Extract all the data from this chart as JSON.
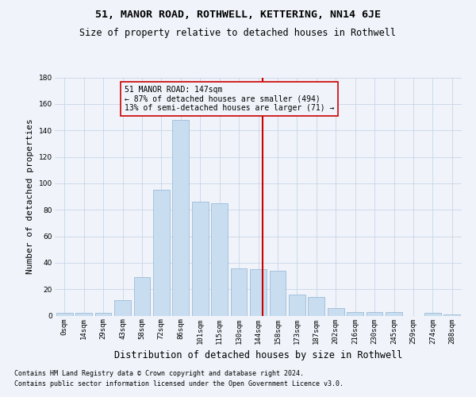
{
  "title1": "51, MANOR ROAD, ROTHWELL, KETTERING, NN14 6JE",
  "title2": "Size of property relative to detached houses in Rothwell",
  "xlabel": "Distribution of detached houses by size in Rothwell",
  "ylabel": "Number of detached properties",
  "bin_labels": [
    "0sqm",
    "14sqm",
    "29sqm",
    "43sqm",
    "58sqm",
    "72sqm",
    "86sqm",
    "101sqm",
    "115sqm",
    "130sqm",
    "144sqm",
    "158sqm",
    "173sqm",
    "187sqm",
    "202sqm",
    "216sqm",
    "230sqm",
    "245sqm",
    "259sqm",
    "274sqm",
    "288sqm"
  ],
  "bar_heights": [
    2,
    2,
    2,
    12,
    29,
    95,
    148,
    86,
    85,
    36,
    35,
    34,
    16,
    14,
    6,
    3,
    3,
    3,
    0,
    2,
    1
  ],
  "bar_color": "#c9ddf0",
  "bar_edge_color": "#9dbbd8",
  "ylim": [
    0,
    180
  ],
  "yticks": [
    0,
    20,
    40,
    60,
    80,
    100,
    120,
    140,
    160,
    180
  ],
  "property_label": "51 MANOR ROAD: 147sqm",
  "annotation_line1": "← 87% of detached houses are smaller (494)",
  "annotation_line2": "13% of semi-detached houses are larger (71) →",
  "vline_color": "#cc0000",
  "footer1": "Contains HM Land Registry data © Crown copyright and database right 2024.",
  "footer2": "Contains public sector information licensed under the Open Government Licence v3.0.",
  "bg_color": "#f0f4fa",
  "grid_color": "#c8d4e8",
  "title1_fontsize": 9.5,
  "title2_fontsize": 8.5,
  "ylabel_fontsize": 8,
  "xlabel_fontsize": 8.5,
  "tick_fontsize": 6.5,
  "footer_fontsize": 6,
  "annot_fontsize": 7
}
